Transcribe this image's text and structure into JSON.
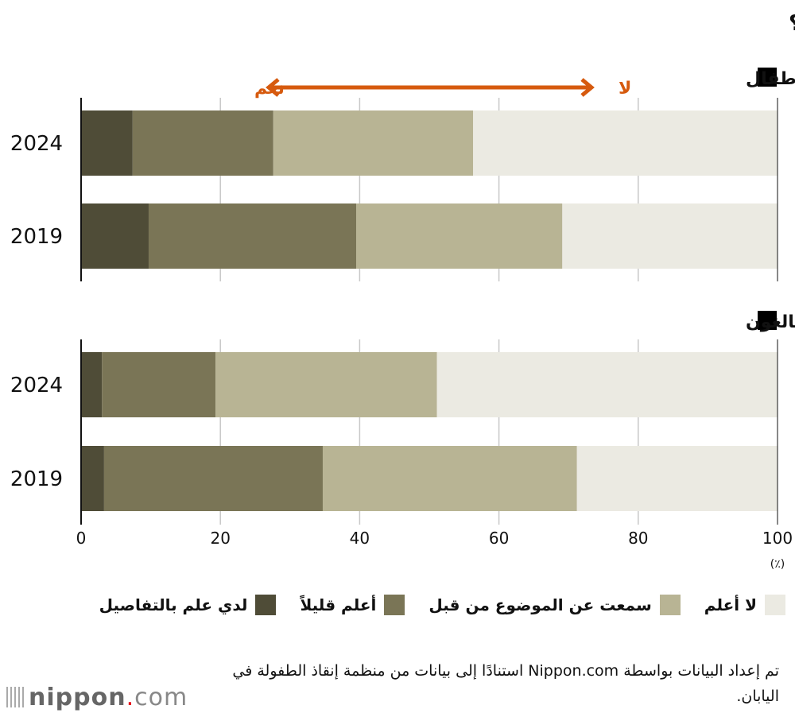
{
  "chart_data": {
    "type": "bar",
    "orientation": "horizontal-stacked",
    "title": "هل تعلم عن فقر الأطفال في اليابان؟",
    "xlim": [
      0,
      100
    ],
    "xticks": [
      "0",
      "20",
      "40",
      "60",
      "80",
      "100"
    ],
    "xunit": "(٪)",
    "grid": true,
    "arrow": {
      "left_label": "نعم",
      "right_label": "لا",
      "color": "#d65a0e"
    },
    "series": [
      {
        "name": "لدي علم بالتفاصيل",
        "color": "#4f4c37"
      },
      {
        "name": "أعلم قليلاً",
        "color": "#7a7556"
      },
      {
        "name": "سمعت عن الموضوع من قبل",
        "color": "#b8b494"
      },
      {
        "name": "لا أعلم",
        "color": "#ebeae2"
      }
    ],
    "groups": [
      {
        "name": "الأطفال",
        "rows": [
          {
            "label": "2024",
            "values": [
              7.4,
              20.2,
              28.7,
              43.7
            ]
          },
          {
            "label": "2019",
            "values": [
              9.7,
              29.8,
              29.6,
              30.9
            ]
          }
        ]
      },
      {
        "name": "البالغون",
        "rows": [
          {
            "label": "2024",
            "values": [
              3.0,
              16.3,
              31.8,
              48.9
            ]
          },
          {
            "label": "2019",
            "values": [
              3.3,
              31.4,
              36.5,
              28.8
            ]
          }
        ]
      }
    ],
    "legend_position": "bottom"
  },
  "footer": {
    "source": "تم إعداد البيانات بواسطة Nippon.com استنادًا إلى بيانات من منظمة إنقاذ الطفولة في اليابان.",
    "logo_name": "nippon",
    "logo_dot": ".",
    "logo_tld": "com"
  }
}
